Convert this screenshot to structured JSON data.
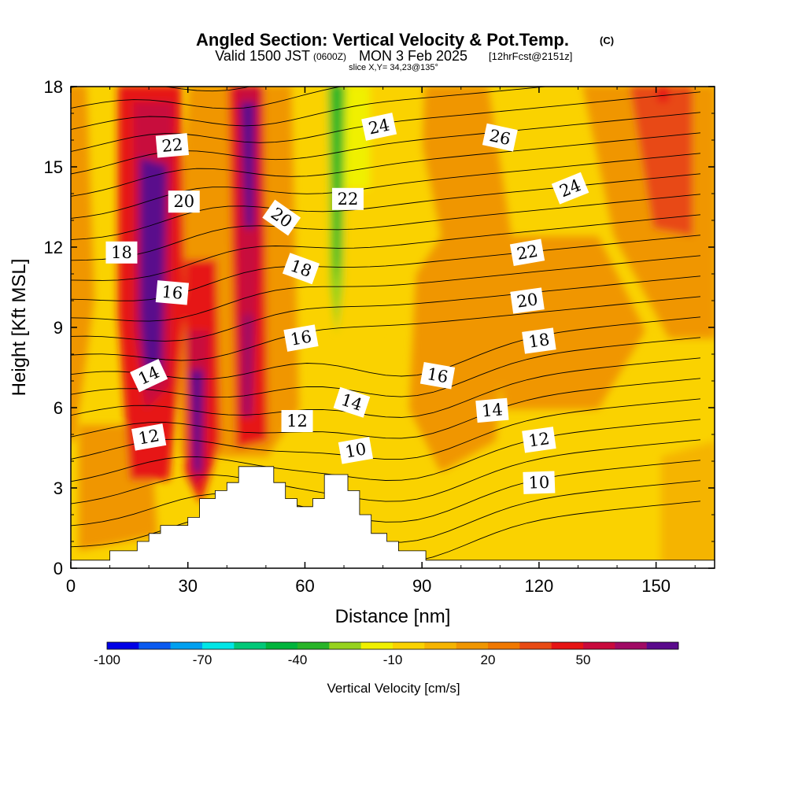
{
  "chart_data": {
    "type": "heatmap",
    "title": "Angled Section: Vertical Velocity & Pot.Temp.",
    "title_unit": "(C)",
    "subtitle_valid": "Valid 1500 JST",
    "subtitle_zulu": "(0600Z)",
    "subtitle_date": "MON 3 Feb 2025",
    "subtitle_fcst": "[12hrFcst@2151z]",
    "subtitle_slice": "slice X,Y= 34,23@135°",
    "xlabel": "Distance [nm]",
    "ylabel": "Height [Kft MSL]",
    "xlim": [
      0,
      165
    ],
    "ylim": [
      0,
      18
    ],
    "x_ticks": [
      0,
      30,
      60,
      90,
      120,
      150
    ],
    "y_ticks": [
      0,
      3,
      6,
      9,
      12,
      15,
      18
    ],
    "colorbar": {
      "label": "Vertical Velocity [cm/s]",
      "tick_values": [
        -100,
        -70,
        -40,
        -10,
        20,
        50
      ],
      "colors": [
        "#0000e6",
        "#0a5af0",
        "#00a0f0",
        "#00e6e6",
        "#00c878",
        "#00b43c",
        "#28b428",
        "#96d21e",
        "#f0f000",
        "#fad200",
        "#f5b400",
        "#f09600",
        "#f07800",
        "#e84a14",
        "#e61414",
        "#c80a3c",
        "#a00a64",
        "#5a0a8c"
      ]
    },
    "terrain": [
      [
        0,
        0.3
      ],
      [
        10,
        0.3
      ],
      [
        10,
        0.65
      ],
      [
        17,
        0.65
      ],
      [
        17,
        1.0
      ],
      [
        20,
        1.0
      ],
      [
        20,
        1.3
      ],
      [
        23,
        1.3
      ],
      [
        23,
        1.6
      ],
      [
        30,
        1.6
      ],
      [
        30,
        1.9
      ],
      [
        33,
        1.9
      ],
      [
        33,
        2.6
      ],
      [
        37,
        2.6
      ],
      [
        37,
        2.9
      ],
      [
        40,
        2.9
      ],
      [
        40,
        3.2
      ],
      [
        43,
        3.2
      ],
      [
        43,
        3.8
      ],
      [
        52,
        3.8
      ],
      [
        52,
        3.2
      ],
      [
        55,
        3.2
      ],
      [
        55,
        2.6
      ],
      [
        58,
        2.6
      ],
      [
        58,
        2.3
      ],
      [
        62,
        2.3
      ],
      [
        62,
        2.6
      ],
      [
        65,
        2.6
      ],
      [
        65,
        3.5
      ],
      [
        71,
        3.5
      ],
      [
        71,
        2.9
      ],
      [
        74,
        2.9
      ],
      [
        74,
        2.0
      ],
      [
        77,
        2.0
      ],
      [
        77,
        1.3
      ],
      [
        81,
        1.3
      ],
      [
        81,
        1.0
      ],
      [
        84,
        1.0
      ],
      [
        84,
        0.65
      ],
      [
        91,
        0.65
      ],
      [
        91,
        0.3
      ],
      [
        165,
        0.3
      ]
    ],
    "series": [
      {
        "name": "10",
        "label_at": [
          73,
          4.4
        ],
        "label_angle": -10
      },
      {
        "name": "12",
        "label_at": [
          20,
          4.9
        ],
        "label_angle": -10
      },
      {
        "name": "12",
        "label_at": [
          58,
          5.5
        ],
        "label_angle": 0
      },
      {
        "name": "12",
        "label_at": [
          120,
          4.8
        ],
        "label_angle": -8
      },
      {
        "name": "10",
        "label_at": [
          120,
          3.2
        ],
        "label_angle": -2
      },
      {
        "name": "14",
        "label_at": [
          20,
          7.2
        ],
        "label_angle": -25
      },
      {
        "name": "14",
        "label_at": [
          72,
          6.2
        ],
        "label_angle": 18
      },
      {
        "name": "14",
        "label_at": [
          108,
          5.9
        ],
        "label_angle": -5
      },
      {
        "name": "16",
        "label_at": [
          26,
          10.3
        ],
        "label_angle": 5
      },
      {
        "name": "16",
        "label_at": [
          59,
          8.6
        ],
        "label_angle": -10
      },
      {
        "name": "16",
        "label_at": [
          94,
          7.2
        ],
        "label_angle": 10
      },
      {
        "name": "18",
        "label_at": [
          13,
          11.8
        ],
        "label_angle": 0
      },
      {
        "name": "18",
        "label_at": [
          59,
          11.2
        ],
        "label_angle": 20
      },
      {
        "name": "18",
        "label_at": [
          120,
          8.5
        ],
        "label_angle": -8
      },
      {
        "name": "20",
        "label_at": [
          29,
          13.7
        ],
        "label_angle": 0
      },
      {
        "name": "20",
        "label_at": [
          54,
          13.1
        ],
        "label_angle": 35
      },
      {
        "name": "20",
        "label_at": [
          117,
          10.0
        ],
        "label_angle": -8
      },
      {
        "name": "22",
        "label_at": [
          26,
          15.8
        ],
        "label_angle": -5
      },
      {
        "name": "22",
        "label_at": [
          71,
          13.8
        ],
        "label_angle": 0
      },
      {
        "name": "22",
        "label_at": [
          117,
          11.8
        ],
        "label_angle": -10
      },
      {
        "name": "24",
        "label_at": [
          79,
          16.5
        ],
        "label_angle": -12
      },
      {
        "name": "24",
        "label_at": [
          128,
          14.2
        ],
        "label_angle": -22
      },
      {
        "name": "26",
        "label_at": [
          110,
          16.1
        ],
        "label_angle": 12
      }
    ],
    "velocity_features": [
      {
        "kind": "updraft",
        "x": 18,
        "y": [
          2.6,
          18
        ],
        "peak": 58
      },
      {
        "kind": "updraft",
        "x": 33,
        "y": [
          2.6,
          10
        ],
        "peak": 62
      },
      {
        "kind": "updraft",
        "x": 45,
        "y": [
          4.5,
          18
        ],
        "peak": 62
      },
      {
        "kind": "downdraft",
        "x": 68,
        "y": [
          9,
          18
        ],
        "peak": -40
      },
      {
        "kind": "updraft",
        "x": 152,
        "y": [
          12,
          18
        ],
        "peak": 35
      },
      {
        "kind": "updraft",
        "x": 120,
        "y": [
          8,
          14
        ],
        "peak": 20
      }
    ]
  }
}
